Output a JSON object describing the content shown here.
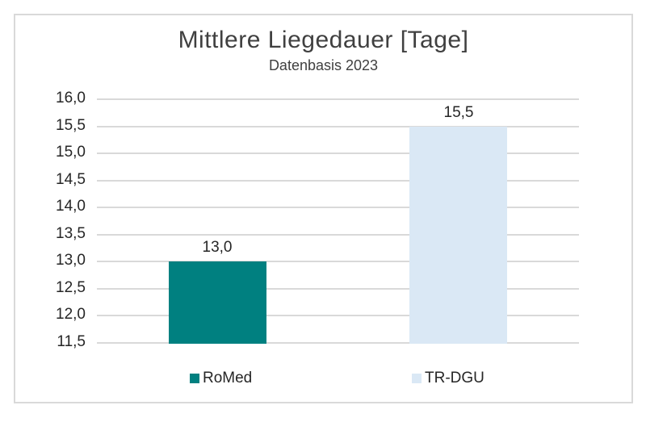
{
  "chart_data": {
    "type": "bar",
    "title": "Mittlere Liegedauer [Tage]",
    "subtitle": "Datenbasis 2023",
    "categories": [
      "RoMed",
      "TR-DGU"
    ],
    "series": [
      {
        "name": "RoMed",
        "value": 13.0,
        "label": "13,0",
        "color": "#008080"
      },
      {
        "name": "TR-DGU",
        "value": 15.5,
        "label": "15,5",
        "color": "#DAE8F5"
      }
    ],
    "ylim": [
      11.5,
      16.0
    ],
    "ytick_step": 0.5,
    "ytick_labels_top_to_bottom": [
      "16,0",
      "15,5",
      "15,0",
      "14,5",
      "14,0",
      "13,5",
      "13,0",
      "12,5",
      "12,0",
      "11,5"
    ],
    "decimal_separator": ",",
    "grid": true,
    "legend_position": "bottom",
    "xlabel": "",
    "ylabel": ""
  },
  "colors": {
    "background": "#FFFFFF",
    "frame_border": "#D9D9D9",
    "gridline": "#D9D9D9",
    "title_text": "#404040",
    "axis_text": "#262626",
    "value_label_text": "#262626",
    "legend_text": "#262626"
  }
}
